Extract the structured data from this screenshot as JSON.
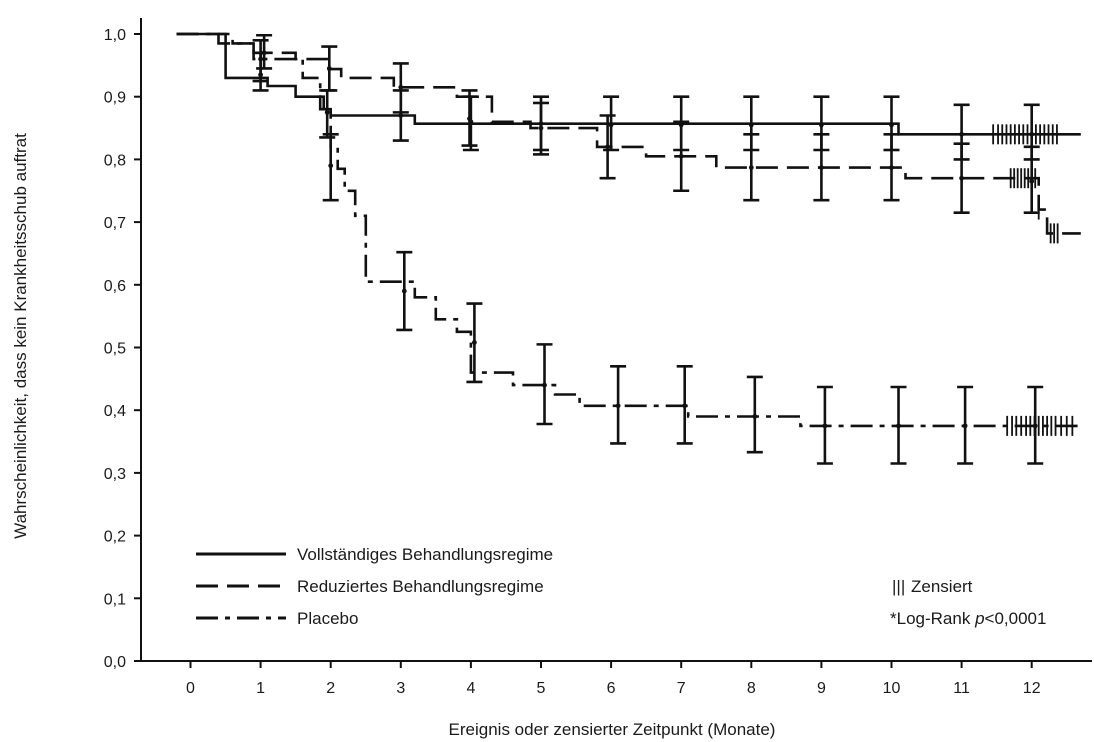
{
  "chart_data": {
    "type": "line",
    "subtype": "kaplan-meier",
    "xlabel": "Ereignis oder zensierter Zeitpunkt (Monate)",
    "ylabel": "Wahrscheinlichkeit, dass kein Krankheitsschub auftrat",
    "xlim": [
      -0.7,
      12.7
    ],
    "ylim": [
      0,
      1.0
    ],
    "x_ticks": [
      0,
      1,
      2,
      3,
      4,
      5,
      6,
      7,
      8,
      9,
      10,
      11,
      12
    ],
    "x_tick_labels": [
      "0",
      "1",
      "2",
      "3",
      "4",
      "5",
      "6",
      "7",
      "8",
      "9",
      "10",
      "11",
      "12"
    ],
    "y_ticks": [
      0,
      0.1,
      0.2,
      0.3,
      0.4,
      0.5,
      0.6,
      0.7,
      0.8,
      0.9,
      1.0
    ],
    "y_tick_labels": [
      "0,0",
      "0,1",
      "0,2",
      "0,3",
      "0,4",
      "0,5",
      "0,6",
      "0,7",
      "0,8",
      "0,9",
      "1,0"
    ],
    "grid": false,
    "legend": {
      "placement": "bottom-left",
      "entries": [
        {
          "label": "Vollständiges Behandlungsregime",
          "style": "solid"
        },
        {
          "label": "Reduziertes Behandlungsregime",
          "style": "dashed"
        },
        {
          "label": "Placebo",
          "style": "dashdot"
        }
      ]
    },
    "annotations": {
      "censored_symbol": "|||",
      "censored_label": "Zensiert",
      "logrank_prefix": "*Log-Rank ",
      "logrank_p": "p",
      "logrank_suffix": "<0,0001"
    },
    "series": [
      {
        "name": "Vollständiges Behandlungsregime",
        "style": "solid",
        "x": [
          -0.2,
          0.5,
          0.5,
          1.1,
          1.1,
          1.5,
          1.5,
          1.9,
          1.9,
          2.0,
          2.0,
          3.2,
          3.2,
          10.1,
          10.1,
          12.7
        ],
        "y": [
          1.0,
          1.0,
          0.93,
          0.93,
          0.917,
          0.917,
          0.9,
          0.9,
          0.88,
          0.88,
          0.87,
          0.87,
          0.857,
          0.857,
          0.84,
          0.84
        ],
        "error_bars": [
          {
            "x": 1.0,
            "y": 0.935,
            "lo": 0.91,
            "hi": 0.97
          },
          {
            "x": 1.95,
            "y": 0.875,
            "lo": 0.835,
            "hi": 0.91
          },
          {
            "x": 3.0,
            "y": 0.87,
            "lo": 0.83,
            "hi": 0.91
          },
          {
            "x": 4.0,
            "y": 0.86,
            "lo": 0.815,
            "hi": 0.9
          },
          {
            "x": 5.0,
            "y": 0.857,
            "lo": 0.815,
            "hi": 0.9
          },
          {
            "x": 6.0,
            "y": 0.855,
            "lo": 0.815,
            "hi": 0.9
          },
          {
            "x": 7.0,
            "y": 0.855,
            "lo": 0.815,
            "hi": 0.9
          },
          {
            "x": 8.0,
            "y": 0.855,
            "lo": 0.815,
            "hi": 0.9
          },
          {
            "x": 9.0,
            "y": 0.855,
            "lo": 0.815,
            "hi": 0.9
          },
          {
            "x": 10.0,
            "y": 0.855,
            "lo": 0.815,
            "hi": 0.9
          },
          {
            "x": 11.0,
            "y": 0.84,
            "lo": 0.8,
            "hi": 0.887
          },
          {
            "x": 12.0,
            "y": 0.84,
            "lo": 0.8,
            "hi": 0.887
          }
        ],
        "censored_x": [
          11.45,
          11.52,
          11.58,
          11.64,
          11.7,
          11.76,
          11.82,
          11.88,
          11.94,
          12.0,
          12.06,
          12.12,
          12.18,
          12.24,
          12.3,
          12.36
        ]
      },
      {
        "name": "Reduziertes Behandlungsregime",
        "style": "dashed",
        "x": [
          -0.2,
          0.6,
          0.6,
          0.9,
          0.9,
          1.5,
          1.5,
          1.95,
          1.95,
          2.15,
          2.15,
          2.9,
          2.9,
          3.8,
          3.8,
          4.3,
          4.3,
          4.85,
          4.85,
          5.8,
          5.8,
          6.5,
          6.5,
          7.5,
          7.5,
          8.2,
          8.2,
          10.2,
          10.2,
          12.1,
          12.1,
          12.22,
          12.22,
          12.7
        ],
        "y": [
          1.0,
          1.0,
          0.985,
          0.985,
          0.97,
          0.97,
          0.96,
          0.96,
          0.944,
          0.944,
          0.93,
          0.93,
          0.915,
          0.915,
          0.9,
          0.9,
          0.86,
          0.86,
          0.85,
          0.85,
          0.82,
          0.82,
          0.805,
          0.805,
          0.787,
          0.787,
          0.787,
          0.787,
          0.77,
          0.77,
          0.72,
          0.72,
          0.682,
          0.682
        ],
        "error_bars": [
          {
            "x": 1.05,
            "y": 0.97,
            "lo": 0.945,
            "hi": 0.998
          },
          {
            "x": 1.98,
            "y": 0.945,
            "lo": 0.91,
            "hi": 0.98
          },
          {
            "x": 3.0,
            "y": 0.915,
            "lo": 0.875,
            "hi": 0.953
          },
          {
            "x": 3.98,
            "y": 0.865,
            "lo": 0.822,
            "hi": 0.91
          },
          {
            "x": 5.0,
            "y": 0.85,
            "lo": 0.808,
            "hi": 0.89
          },
          {
            "x": 5.95,
            "y": 0.82,
            "lo": 0.77,
            "hi": 0.87
          },
          {
            "x": 7.0,
            "y": 0.805,
            "lo": 0.75,
            "hi": 0.86
          },
          {
            "x": 8.0,
            "y": 0.787,
            "lo": 0.735,
            "hi": 0.84
          },
          {
            "x": 9.0,
            "y": 0.787,
            "lo": 0.735,
            "hi": 0.84
          },
          {
            "x": 10.0,
            "y": 0.787,
            "lo": 0.735,
            "hi": 0.84
          },
          {
            "x": 11.0,
            "y": 0.77,
            "lo": 0.715,
            "hi": 0.825
          },
          {
            "x": 12.0,
            "y": 0.765,
            "lo": 0.715,
            "hi": 0.82
          }
        ],
        "censored_x": [
          11.7,
          11.75,
          11.8,
          11.85,
          11.9,
          11.95,
          12.0,
          12.05,
          12.1,
          12.27,
          12.32,
          12.37
        ]
      },
      {
        "name": "Placebo",
        "style": "dashdot",
        "x": [
          -0.2,
          0.4,
          0.4,
          0.9,
          0.9,
          1.6,
          1.6,
          1.85,
          1.85,
          2.0,
          2.0,
          2.1,
          2.1,
          2.2,
          2.2,
          2.35,
          2.35,
          2.5,
          2.5,
          3.2,
          3.2,
          3.5,
          3.5,
          3.8,
          3.8,
          4.0,
          4.0,
          4.6,
          4.6,
          5.2,
          5.2,
          5.55,
          5.55,
          6.2,
          6.2,
          7.1,
          7.1,
          8.7,
          8.7,
          12.7
        ],
        "y": [
          1.0,
          1.0,
          0.985,
          0.985,
          0.96,
          0.96,
          0.93,
          0.93,
          0.88,
          0.88,
          0.82,
          0.82,
          0.785,
          0.785,
          0.75,
          0.75,
          0.71,
          0.71,
          0.605,
          0.605,
          0.58,
          0.58,
          0.545,
          0.545,
          0.525,
          0.525,
          0.46,
          0.46,
          0.44,
          0.44,
          0.425,
          0.425,
          0.407,
          0.407,
          0.407,
          0.407,
          0.39,
          0.39,
          0.375,
          0.375
        ],
        "error_bars": [
          {
            "x": 1.0,
            "y": 0.96,
            "lo": 0.925,
            "hi": 0.99
          },
          {
            "x": 2.0,
            "y": 0.79,
            "lo": 0.735,
            "hi": 0.84
          },
          {
            "x": 3.05,
            "y": 0.59,
            "lo": 0.528,
            "hi": 0.652
          },
          {
            "x": 4.05,
            "y": 0.508,
            "lo": 0.445,
            "hi": 0.57
          },
          {
            "x": 5.05,
            "y": 0.44,
            "lo": 0.378,
            "hi": 0.505
          },
          {
            "x": 6.1,
            "y": 0.407,
            "lo": 0.347,
            "hi": 0.47
          },
          {
            "x": 7.05,
            "y": 0.407,
            "lo": 0.347,
            "hi": 0.47
          },
          {
            "x": 8.05,
            "y": 0.39,
            "lo": 0.333,
            "hi": 0.453
          },
          {
            "x": 9.05,
            "y": 0.375,
            "lo": 0.315,
            "hi": 0.437
          },
          {
            "x": 10.1,
            "y": 0.375,
            "lo": 0.315,
            "hi": 0.437
          },
          {
            "x": 11.05,
            "y": 0.375,
            "lo": 0.315,
            "hi": 0.437
          },
          {
            "x": 12.05,
            "y": 0.375,
            "lo": 0.315,
            "hi": 0.437
          }
        ],
        "censored_x": [
          11.65,
          11.72,
          11.78,
          11.85,
          11.92,
          11.98,
          12.04,
          12.1,
          12.16,
          12.22,
          12.28,
          12.34,
          12.42,
          12.5,
          12.58
        ]
      }
    ]
  }
}
